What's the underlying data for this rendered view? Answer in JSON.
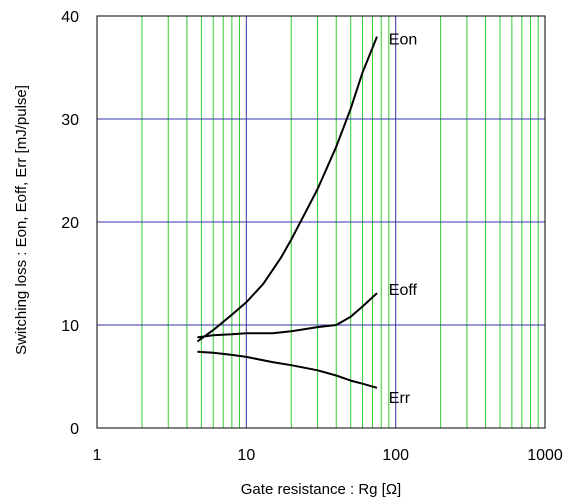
{
  "chart_data": {
    "type": "line",
    "x_scale": "log",
    "y_scale": "linear",
    "xlim": [
      1,
      1000
    ],
    "ylim": [
      0,
      40
    ],
    "xlabel": "Gate resistance : Rg [Ω]",
    "ylabel": "Switching loss  : Eon, Eoff, Err  [mJ/pulse]",
    "x_ticks": [
      1,
      10,
      100,
      1000
    ],
    "x_tick_labels": [
      "1",
      "10",
      "100",
      "1000"
    ],
    "y_ticks": [
      0,
      10,
      20,
      30,
      40
    ],
    "y_tick_labels": [
      "0",
      "10",
      "20",
      "30",
      "40"
    ],
    "grid": true,
    "colors": {
      "minor_grid": "#33cc33",
      "major_grid": "#3333aa",
      "line": "#000000",
      "frame": "#000000"
    },
    "series": [
      {
        "name": "Eon",
        "x": [
          4.7,
          6,
          8,
          10,
          13,
          17,
          20,
          25,
          30,
          40,
          50,
          60,
          75
        ],
        "values": [
          8.4,
          9.5,
          11.0,
          12.2,
          14.0,
          16.5,
          18.3,
          21.0,
          23.2,
          27.3,
          31.0,
          34.5,
          38.0
        ]
      },
      {
        "name": "Eoff",
        "x": [
          4.7,
          6,
          8,
          10,
          15,
          20,
          30,
          40,
          50,
          60,
          75
        ],
        "values": [
          8.8,
          9.0,
          9.1,
          9.2,
          9.2,
          9.4,
          9.8,
          10.0,
          10.8,
          11.8,
          13.1
        ]
      },
      {
        "name": "Err",
        "x": [
          4.7,
          6,
          8,
          10,
          15,
          20,
          30,
          40,
          50,
          60,
          75
        ],
        "values": [
          7.4,
          7.3,
          7.1,
          6.9,
          6.4,
          6.1,
          5.6,
          5.1,
          4.6,
          4.3,
          3.9
        ]
      }
    ],
    "annotations": [
      {
        "text": "Eon",
        "x": 82,
        "y": 37.8
      },
      {
        "text": "Eoff",
        "x": 82,
        "y": 13.5
      },
      {
        "text": "Err",
        "x": 82,
        "y": 3.0
      }
    ]
  }
}
